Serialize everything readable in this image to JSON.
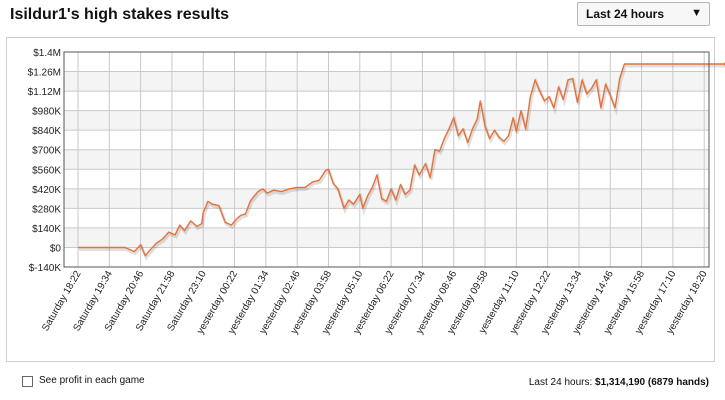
{
  "header": {
    "title": "Isildur1's high stakes results",
    "range_select": "Last 24 hours",
    "range_arrow": "▼"
  },
  "footer": {
    "checkbox_label": "See profit in each game",
    "summary_prefix": "Last 24 hours:",
    "summary_amount": "$1,314,190",
    "summary_hands": "(6879 hands)"
  },
  "colors": {
    "line": "#e8703a",
    "plot_bg_alt": "#f4f4f4",
    "grid": "#c9c9c9",
    "text": "#222222"
  },
  "chart_data": {
    "type": "line",
    "title": "",
    "xlabel": "",
    "ylabel": "",
    "ylim": [
      -140000,
      1400000
    ],
    "grid": true,
    "y_ticks": [
      -140000,
      0,
      140000,
      280000,
      420000,
      560000,
      700000,
      840000,
      980000,
      1120000,
      1260000,
      1400000
    ],
    "y_tick_labels": [
      "$-140K",
      "$0",
      "$140K",
      "$280K",
      "$420K",
      "$560K",
      "$700K",
      "$840K",
      "$980K",
      "$1.12M",
      "$1.26M",
      "$1.4M"
    ],
    "x_tick_labels": [
      "Saturday 18:22",
      "Saturday 19:34",
      "Saturday 20:46",
      "Saturday 21:58",
      "Saturday 23:10",
      "yesterday 00:22",
      "yesterday 01:34",
      "yesterday 02:46",
      "yesterday 03:58",
      "yesterday 05:10",
      "yesterday 06:22",
      "yesterday 07:34",
      "yesterday 08:46",
      "yesterday 09:58",
      "yesterday 11:10",
      "yesterday 12:22",
      "yesterday 13:34",
      "yesterday 14:46",
      "yesterday 15:58",
      "yesterday 17:10",
      "yesterday 18:20"
    ],
    "series": [
      {
        "x": [
          0,
          0.9,
          1.5,
          1.8,
          2.0,
          2.15,
          2.3,
          2.5,
          2.7,
          2.9,
          3.1,
          3.25,
          3.4,
          3.6,
          3.8,
          3.95,
          4.0,
          4.15,
          4.3,
          4.5,
          4.7,
          4.9,
          5.05,
          5.2,
          5.35,
          5.5,
          5.6,
          5.75,
          5.9,
          6.05,
          6.25,
          6.5,
          6.75,
          7.0,
          7.25,
          7.5,
          7.7,
          7.9,
          8.0,
          8.15,
          8.3,
          8.5,
          8.65,
          8.8,
          9.0,
          9.1,
          9.25,
          9.4,
          9.55,
          9.7,
          9.85,
          10.0,
          10.15,
          10.3,
          10.45,
          10.6,
          10.75,
          10.9,
          11.1,
          11.25,
          11.4,
          11.55,
          11.7,
          11.85,
          12.0,
          12.15,
          12.3,
          12.45,
          12.6,
          12.75,
          12.85,
          13.0,
          13.15,
          13.3,
          13.45,
          13.6,
          13.75,
          13.9,
          14.0,
          14.15,
          14.3,
          14.45,
          14.6,
          14.75,
          14.9,
          15.05,
          15.2,
          15.35,
          15.5,
          15.65,
          15.8,
          15.95,
          16.1,
          16.25,
          16.4,
          16.55,
          16.7,
          16.85,
          17.0,
          17.15,
          17.3,
          17.45,
          17.6,
          17.75,
          18.0,
          19.0,
          20.0,
          20.75
        ],
        "y": [
          0,
          0,
          0,
          -30000,
          20000,
          -60000,
          -20000,
          30000,
          60000,
          110000,
          90000,
          160000,
          120000,
          190000,
          150000,
          170000,
          250000,
          330000,
          310000,
          300000,
          180000,
          160000,
          200000,
          230000,
          240000,
          330000,
          360000,
          400000,
          420000,
          390000,
          410000,
          400000,
          420000,
          430000,
          430000,
          470000,
          480000,
          550000,
          560000,
          460000,
          420000,
          280000,
          340000,
          310000,
          380000,
          280000,
          370000,
          430000,
          520000,
          350000,
          330000,
          420000,
          340000,
          450000,
          380000,
          410000,
          590000,
          520000,
          600000,
          500000,
          700000,
          690000,
          780000,
          850000,
          930000,
          800000,
          850000,
          750000,
          850000,
          920000,
          1050000,
          870000,
          780000,
          840000,
          790000,
          760000,
          800000,
          930000,
          830000,
          980000,
          850000,
          1080000,
          1200000,
          1120000,
          1050000,
          1080000,
          1000000,
          1150000,
          1060000,
          1200000,
          1210000,
          1040000,
          1200000,
          1100000,
          1140000,
          1200000,
          1000000,
          1170000,
          1090000,
          1000000,
          1210000,
          1314190,
          1314190,
          1314190,
          1314190,
          1314190,
          1314190,
          1314190
        ]
      }
    ]
  }
}
